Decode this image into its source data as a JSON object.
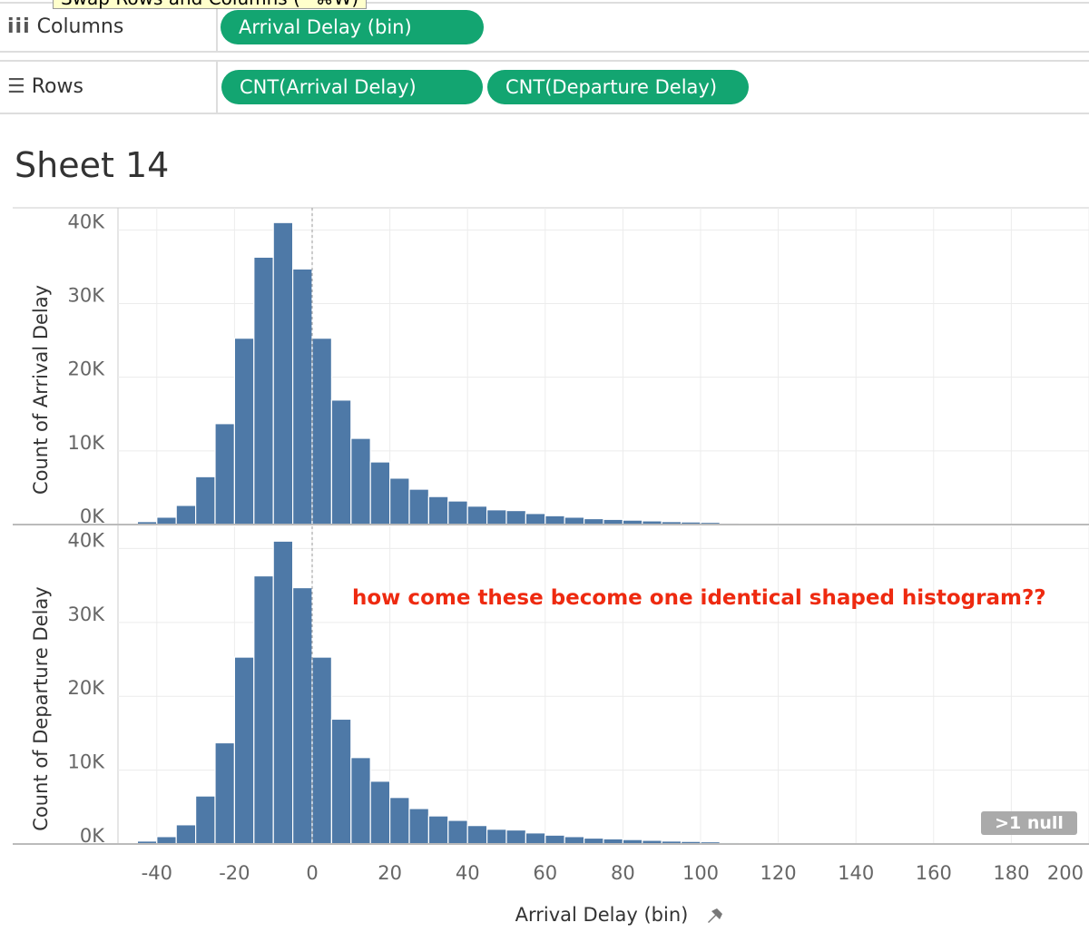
{
  "tooltip": "Swap Rows and Columns (^⌘W)",
  "shelves": {
    "columns": {
      "label": "Columns",
      "pills": [
        "Arrival Delay (bin)"
      ]
    },
    "rows": {
      "label": "Rows",
      "pills": [
        "CNT(Arrival Delay)",
        "CNT(Departure Delay)"
      ]
    }
  },
  "sheet_title": "Sheet 14",
  "chart_data": [
    {
      "type": "histogram",
      "ylabel": "Count of Arrival Delay",
      "color": "#4e79a7",
      "grid": true,
      "bins": [
        -45,
        -40,
        -35,
        -30,
        -25,
        -20,
        -15,
        -10,
        -5,
        0,
        5,
        10,
        15,
        20,
        25,
        30,
        35,
        40,
        45,
        50,
        55,
        60,
        65,
        70,
        75,
        80,
        85,
        90,
        95,
        100,
        105,
        110,
        115,
        120,
        125,
        130
      ],
      "values": [
        400,
        1000,
        2600,
        6500,
        13700,
        25300,
        36300,
        41000,
        34700,
        25300,
        16900,
        11700,
        8500,
        6300,
        4800,
        3800,
        3200,
        2500,
        2000,
        1900,
        1500,
        1200,
        1000,
        800,
        700,
        600,
        500,
        400,
        350,
        300,
        200,
        150,
        100,
        100,
        100
      ],
      "xlim": [
        -50,
        200
      ],
      "ylim": [
        0,
        43000
      ],
      "yticks": [
        {
          "value": 0,
          "label": "0K"
        },
        {
          "value": 10000,
          "label": "10K"
        },
        {
          "value": 20000,
          "label": "20K"
        },
        {
          "value": 30000,
          "label": "30K"
        },
        {
          "value": 40000,
          "label": "40K"
        }
      ]
    },
    {
      "type": "histogram",
      "ylabel": "Count of Departure Delay",
      "xlabel": "Arrival Delay (bin)",
      "color": "#4e79a7",
      "grid": true,
      "annotation": "how come these become one identical shaped histogram??",
      "null_indicator": ">1 null",
      "bins": [
        -45,
        -40,
        -35,
        -30,
        -25,
        -20,
        -15,
        -10,
        -5,
        0,
        5,
        10,
        15,
        20,
        25,
        30,
        35,
        40,
        45,
        50,
        55,
        60,
        65,
        70,
        75,
        80,
        85,
        90,
        95,
        100,
        105,
        110,
        115,
        120,
        125,
        130
      ],
      "values": [
        400,
        1000,
        2600,
        6500,
        13700,
        25300,
        36300,
        41000,
        34700,
        25300,
        16900,
        11700,
        8500,
        6300,
        4800,
        3800,
        3200,
        2500,
        2000,
        1900,
        1500,
        1200,
        1000,
        800,
        700,
        600,
        500,
        400,
        350,
        300,
        200,
        150,
        100,
        100,
        100
      ],
      "xlim": [
        -50,
        200
      ],
      "ylim": [
        0,
        43000
      ],
      "xticks": [
        -40,
        -20,
        0,
        20,
        40,
        60,
        80,
        100,
        120,
        140,
        160,
        180,
        200
      ],
      "yticks": [
        {
          "value": 0,
          "label": "0K"
        },
        {
          "value": 10000,
          "label": "10K"
        },
        {
          "value": 20000,
          "label": "20K"
        },
        {
          "value": 30000,
          "label": "30K"
        },
        {
          "value": 40000,
          "label": "40K"
        }
      ]
    }
  ]
}
